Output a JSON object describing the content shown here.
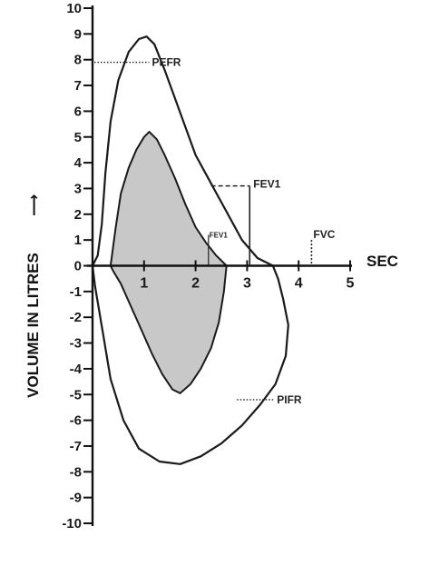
{
  "chart_data": {
    "type": "line",
    "ylabel": "VOLUME IN LITRES",
    "ylabel_arrow": "⟶",
    "xlabel": "SEC",
    "xlim": [
      0,
      5
    ],
    "ylim": [
      -10,
      10
    ],
    "x_ticks": [
      "1",
      "2",
      "3",
      "4",
      "5"
    ],
    "y_ticks": [
      "10",
      "9",
      "8",
      "7",
      "6",
      "5",
      "4",
      "3",
      "2",
      "1",
      "0",
      "-1",
      "-2",
      "-3",
      "-4",
      "-5",
      "-6",
      "-7",
      "-8",
      "-9",
      "-10"
    ],
    "grid": false,
    "legend": "none",
    "series": [
      {
        "style": "outline",
        "fill": "none",
        "points": [
          [
            0.0,
            0.0
          ],
          [
            0.1,
            0.4
          ],
          [
            0.18,
            1.6
          ],
          [
            0.25,
            3.6
          ],
          [
            0.35,
            5.6
          ],
          [
            0.5,
            7.2
          ],
          [
            0.7,
            8.3
          ],
          [
            0.9,
            8.8
          ],
          [
            1.05,
            8.9
          ],
          [
            1.2,
            8.6
          ],
          [
            1.4,
            7.6
          ],
          [
            1.6,
            6.5
          ],
          [
            1.8,
            5.4
          ],
          [
            2.0,
            4.3
          ],
          [
            2.3,
            3.2
          ],
          [
            2.6,
            2.1
          ],
          [
            2.9,
            1.0
          ],
          [
            3.2,
            0.3
          ],
          [
            3.5,
            0.0
          ],
          [
            3.6,
            -0.5
          ],
          [
            3.7,
            -1.3
          ],
          [
            3.8,
            -2.3
          ],
          [
            3.75,
            -3.5
          ],
          [
            3.55,
            -4.6
          ],
          [
            3.25,
            -5.4
          ],
          [
            2.9,
            -6.2
          ],
          [
            2.5,
            -6.9
          ],
          [
            2.1,
            -7.4
          ],
          [
            1.7,
            -7.7
          ],
          [
            1.3,
            -7.6
          ],
          [
            0.9,
            -7.1
          ],
          [
            0.6,
            -6.0
          ],
          [
            0.35,
            -4.4
          ],
          [
            0.2,
            -2.6
          ],
          [
            0.05,
            -0.8
          ],
          [
            0.0,
            0.0
          ]
        ]
      },
      {
        "style": "shaded",
        "fill": "#c8c8c8",
        "points": [
          [
            0.35,
            0.0
          ],
          [
            0.45,
            1.5
          ],
          [
            0.55,
            2.8
          ],
          [
            0.7,
            3.8
          ],
          [
            0.85,
            4.5
          ],
          [
            1.0,
            5.0
          ],
          [
            1.1,
            5.2
          ],
          [
            1.25,
            4.9
          ],
          [
            1.4,
            4.3
          ],
          [
            1.6,
            3.4
          ],
          [
            1.8,
            2.4
          ],
          [
            2.0,
            1.5
          ],
          [
            2.2,
            0.9
          ],
          [
            2.4,
            0.4
          ],
          [
            2.6,
            0.0
          ],
          [
            2.55,
            -1.0
          ],
          [
            2.45,
            -2.2
          ],
          [
            2.3,
            -3.2
          ],
          [
            2.1,
            -4.0
          ],
          [
            1.9,
            -4.6
          ],
          [
            1.7,
            -4.95
          ],
          [
            1.55,
            -4.8
          ],
          [
            1.35,
            -4.2
          ],
          [
            1.15,
            -3.4
          ],
          [
            0.95,
            -2.5
          ],
          [
            0.75,
            -1.6
          ],
          [
            0.55,
            -0.7
          ],
          [
            0.4,
            -0.2
          ],
          [
            0.35,
            0.0
          ]
        ]
      }
    ],
    "annotations": [
      {
        "label": "PEFR",
        "x": 1.1,
        "y": 7.9,
        "size": "normal",
        "line_from_x": 0.0,
        "line_style": "dotted"
      },
      {
        "label": "FEV1",
        "x": 3.05,
        "y": 3.1,
        "size": "normal",
        "line_from_x": 2.3,
        "line_style": "dashed",
        "drop_to_zero": true
      },
      {
        "label": "FEV1",
        "x": 2.25,
        "y": 1.2,
        "size": "small",
        "line_from_x": 2.25,
        "line_style": "none",
        "drop_to_zero": true
      },
      {
        "label": "FVC",
        "x": 4.25,
        "y": 1.0,
        "size": "normal",
        "line_from_x": 4.25,
        "line_style": "dotted",
        "drop_to_zero": true
      },
      {
        "label": "PIFR",
        "x": 3.05,
        "y": -5.2,
        "size": "normal",
        "line_from_x": 3.05,
        "line_style": "dotted"
      }
    ]
  }
}
